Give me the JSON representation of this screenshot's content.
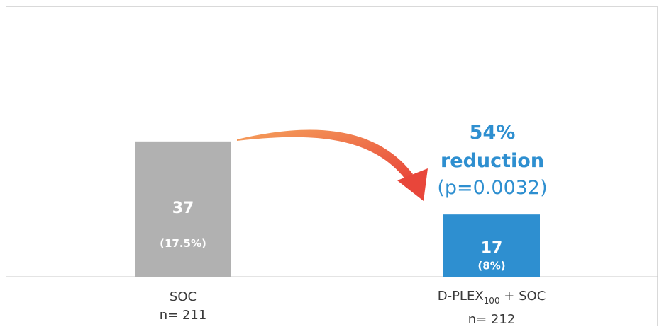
{
  "chart_data": {
    "type": "bar",
    "categories": [
      "SOC",
      "D-PLEX100 + SOC"
    ],
    "category_labels": [
      {
        "main": "SOC",
        "sub": "",
        "suffix": "",
        "n": "n= 211"
      },
      {
        "main": "D-PLEX",
        "sub": "100",
        "suffix": " + SOC",
        "n": "n= 212"
      }
    ],
    "values": [
      37,
      17
    ],
    "value_labels": [
      "37",
      "17"
    ],
    "percent_labels": [
      "(17.5%)",
      "(8%)"
    ],
    "colors": [
      "#b1b1b1",
      "#2e8fd0"
    ],
    "ylim": [
      0,
      60
    ],
    "grid": false,
    "annotation": {
      "line1": "54%",
      "line2": "reduction",
      "line3": "(p=0.0032)",
      "color": "#2e8fd0"
    },
    "arrow_color": "#ef6b3c"
  }
}
